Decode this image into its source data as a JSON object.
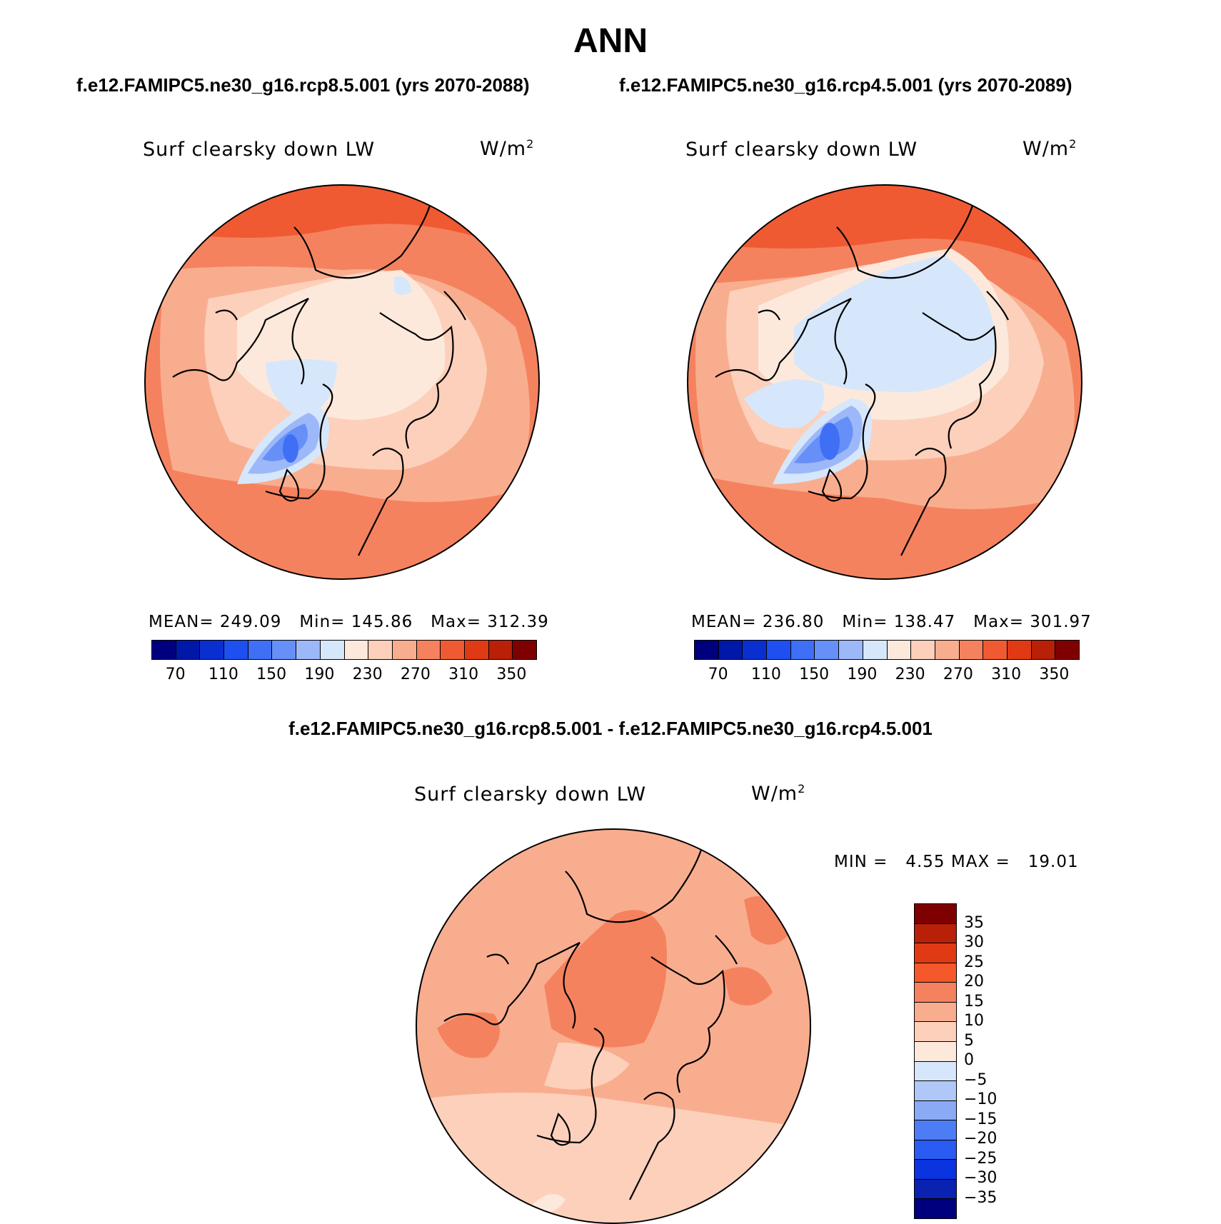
{
  "header": {
    "title": "ANN",
    "left_case": "f.e12.FAMIPC5.ne30_g16.rcp8.5.001 (yrs 2070-2088)",
    "right_case": "f.e12.FAMIPC5.ne30_g16.rcp4.5.001 (yrs 2070-2089)",
    "diff_title": "f.e12.FAMIPC5.ne30_g16.rcp8.5.001 - f.e12.FAMIPC5.ne30_g16.rcp4.5.001"
  },
  "panels": {
    "left": {
      "variable": "Surf clearsky down LW",
      "units": "W/m",
      "units_exp": "2",
      "mean_label": "MEAN=",
      "mean": "249.09",
      "min_label": "Min=",
      "min": "145.86",
      "max_label": "Max=",
      "max": "312.39"
    },
    "right": {
      "variable": "Surf clearsky down LW",
      "units": "W/m",
      "units_exp": "2",
      "mean_label": "MEAN=",
      "mean": "236.80",
      "min_label": "Min=",
      "min": "138.47",
      "max_label": "Max=",
      "max": "301.97"
    },
    "diff": {
      "variable": "Surf clearsky down LW",
      "units": "W/m",
      "units_exp": "2",
      "min_label": "MIN =",
      "min": "4.55",
      "max_label": "MAX =",
      "max": "19.01"
    }
  },
  "colorbar_main": {
    "colors": [
      "#00007f",
      "#0018a8",
      "#0a2fd0",
      "#1e4ff0",
      "#3f6ff5",
      "#6690f7",
      "#9db8f8",
      "#d6e7fb",
      "#fde9dc",
      "#fcd0bb",
      "#f9ad8f",
      "#f5825e",
      "#ef5a33",
      "#e03a14",
      "#b82008",
      "#7f0000"
    ],
    "tick_labels": [
      "70",
      "110",
      "150",
      "190",
      "230",
      "270",
      "310",
      "350"
    ]
  },
  "colorbar_diff": {
    "colors": [
      "#7f0000",
      "#b82008",
      "#e03a14",
      "#f5582a",
      "#f5825e",
      "#f9ad8f",
      "#fcd0bb",
      "#fde9dc",
      "#d6e7fb",
      "#b0c8f8",
      "#8aaaf6",
      "#4d7df4",
      "#2a5bf2",
      "#0a34e0",
      "#0a22b0",
      "#00007f"
    ],
    "labels": [
      "35",
      "30",
      "25",
      "20",
      "15",
      "10",
      "5",
      "0",
      "−5",
      "−10",
      "−15",
      "−20",
      "−25",
      "−30",
      "−35"
    ]
  }
}
